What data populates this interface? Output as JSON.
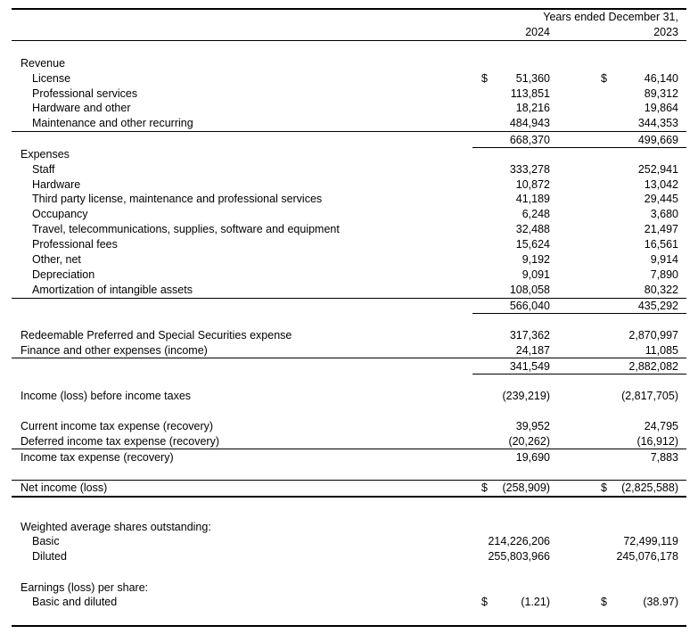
{
  "header": {
    "period_label": "Years ended December 31,",
    "year_1": "2024",
    "year_2": "2023"
  },
  "revenue": {
    "heading": "Revenue",
    "items": [
      {
        "label": "License",
        "y2024": "51,360",
        "y2023": "46,140"
      },
      {
        "label": "Professional services",
        "y2024": "113,851",
        "y2023": "89,312"
      },
      {
        "label": "Hardware and other",
        "y2024": "18,216",
        "y2023": "19,864"
      },
      {
        "label": "Maintenance and other recurring",
        "y2024": "484,943",
        "y2023": "344,353"
      }
    ],
    "total": {
      "y2024": "668,370",
      "y2023": "499,669"
    }
  },
  "expenses": {
    "heading": "Expenses",
    "items": [
      {
        "label": "Staff",
        "y2024": "333,278",
        "y2023": "252,941"
      },
      {
        "label": "Hardware",
        "y2024": "10,872",
        "y2023": "13,042"
      },
      {
        "label": "Third party license, maintenance and professional services",
        "y2024": "41,189",
        "y2023": "29,445"
      },
      {
        "label": "Occupancy",
        "y2024": "6,248",
        "y2023": "3,680"
      },
      {
        "label": "Travel, telecommunications, supplies, software and equipment",
        "y2024": "32,488",
        "y2023": "21,497"
      },
      {
        "label": "Professional fees",
        "y2024": "15,624",
        "y2023": "16,561"
      },
      {
        "label": "Other, net",
        "y2024": "9,192",
        "y2023": "9,914"
      },
      {
        "label": "Depreciation",
        "y2024": "9,091",
        "y2023": "7,890"
      },
      {
        "label": "Amortization of intangible assets",
        "y2024": "108,058",
        "y2023": "80,322"
      }
    ],
    "total": {
      "y2024": "566,040",
      "y2023": "435,292"
    }
  },
  "other": {
    "items": [
      {
        "label": "Redeemable Preferred and Special Securities expense",
        "y2024": "317,362",
        "y2023": "2,870,997"
      },
      {
        "label": "Finance and other expenses (income)",
        "y2024": "24,187",
        "y2023": "11,085"
      }
    ],
    "total": {
      "y2024": "341,549",
      "y2023": "2,882,082"
    }
  },
  "pretax": {
    "label": "Income (loss) before income taxes",
    "y2024": "(239,219)",
    "y2023": "(2,817,705)"
  },
  "tax": {
    "items": [
      {
        "label": "Current income tax expense (recovery)",
        "y2024": "39,952",
        "y2023": "24,795"
      },
      {
        "label": "Deferred income tax expense (recovery)",
        "y2024": "(20,262)",
        "y2023": "(16,912)"
      }
    ],
    "total": {
      "label": "Income tax expense (recovery)",
      "y2024": "19,690",
      "y2023": "7,883"
    }
  },
  "net_income": {
    "label": "Net income (loss)",
    "y2024": "(258,909)",
    "y2023": "(2,825,588)"
  },
  "shares": {
    "heading": "Weighted average shares outstanding:",
    "items": [
      {
        "label": "Basic",
        "y2024": "214,226,206",
        "y2023": "72,499,119"
      },
      {
        "label": "Diluted",
        "y2024": "255,803,966",
        "y2023": "245,076,178"
      }
    ]
  },
  "eps": {
    "heading": "Earnings (loss) per share:",
    "item": {
      "label": "Basic and diluted",
      "y2024": "(1.21)",
      "y2023": "(38.97)"
    }
  },
  "currency_symbol": "$"
}
